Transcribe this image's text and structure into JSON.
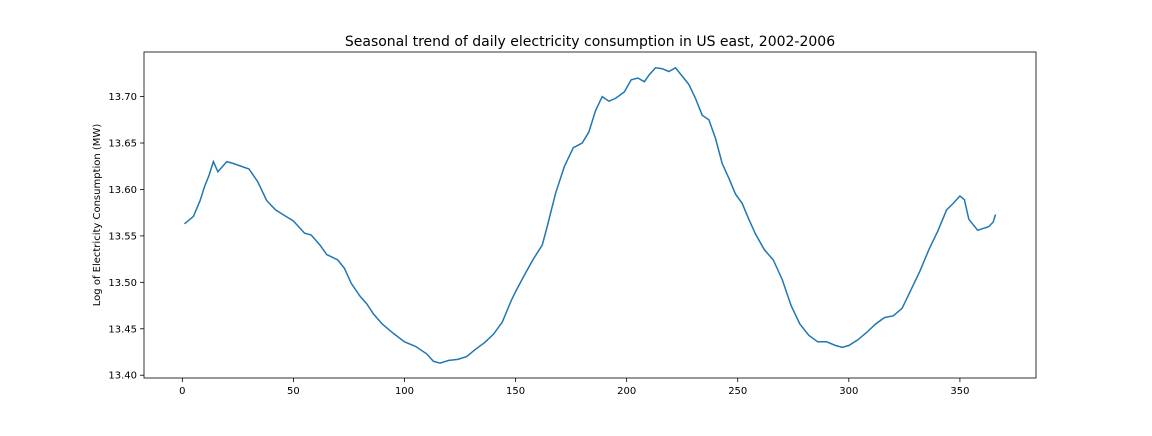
{
  "chart_data": {
    "type": "line",
    "title": "Seasonal trend of daily electricity consumption in US east, 2002-2006",
    "xlabel": "",
    "ylabel": "Log of Electricity Consumption (MW)",
    "xlim": [
      -17.25,
      384.25
    ],
    "ylim": [
      13.397,
      13.748
    ],
    "grid": false,
    "legend": "none",
    "x_ticks": [
      0,
      50,
      100,
      150,
      200,
      250,
      300,
      350
    ],
    "y_ticks": [
      13.4,
      13.45,
      13.5,
      13.55,
      13.6,
      13.65,
      13.7
    ],
    "x_tick_labels": [
      "0",
      "50",
      "100",
      "150",
      "200",
      "250",
      "300",
      "350"
    ],
    "y_tick_labels": [
      "13.40",
      "13.45",
      "13.50",
      "13.55",
      "13.60",
      "13.65",
      "13.70"
    ],
    "line_color": "#1f77b4",
    "series": [
      {
        "x": [
          1,
          5,
          8,
          10,
          12,
          14,
          16,
          20,
          23,
          30,
          34,
          38,
          42,
          46,
          50,
          55,
          58,
          62,
          65,
          70,
          73,
          76,
          80,
          83,
          86,
          90,
          95,
          100,
          105,
          110,
          113,
          116,
          120,
          124,
          128,
          132,
          136,
          140,
          144,
          148,
          150,
          154,
          158,
          162,
          164,
          168,
          172,
          176,
          180,
          183,
          186,
          189,
          192,
          195,
          199,
          202,
          205,
          208,
          210,
          213,
          216,
          219,
          222,
          225,
          228,
          231,
          234,
          237,
          240,
          243,
          246,
          249,
          252,
          255,
          258,
          262,
          266,
          270,
          274,
          278,
          282,
          286,
          290,
          294,
          297,
          300,
          304,
          308,
          312,
          316,
          320,
          324,
          328,
          332,
          336,
          340,
          344,
          347,
          350,
          352,
          354,
          358,
          363,
          365,
          366
        ],
        "y": [
          13.563,
          13.571,
          13.588,
          13.603,
          13.615,
          13.63,
          13.619,
          13.63,
          13.628,
          13.622,
          13.608,
          13.588,
          13.578,
          13.572,
          13.566,
          13.553,
          13.551,
          13.54,
          13.53,
          13.524,
          13.515,
          13.499,
          13.485,
          13.477,
          13.466,
          13.455,
          13.445,
          13.436,
          13.431,
          13.423,
          13.415,
          13.413,
          13.416,
          13.417,
          13.42,
          13.428,
          13.435,
          13.444,
          13.457,
          13.48,
          13.49,
          13.508,
          13.525,
          13.54,
          13.558,
          13.596,
          13.625,
          13.645,
          13.65,
          13.662,
          13.685,
          13.7,
          13.695,
          13.698,
          13.705,
          13.718,
          13.72,
          13.716,
          13.723,
          13.731,
          13.73,
          13.727,
          13.731,
          13.722,
          13.713,
          13.698,
          13.68,
          13.675,
          13.655,
          13.628,
          13.612,
          13.595,
          13.585,
          13.568,
          13.552,
          13.535,
          13.524,
          13.503,
          13.475,
          13.455,
          13.443,
          13.436,
          13.436,
          13.432,
          13.43,
          13.432,
          13.438,
          13.446,
          13.455,
          13.462,
          13.464,
          13.472,
          13.492,
          13.512,
          13.535,
          13.555,
          13.578,
          13.585,
          13.593,
          13.589,
          13.568,
          13.556,
          13.56,
          13.565,
          13.573
        ]
      }
    ]
  }
}
